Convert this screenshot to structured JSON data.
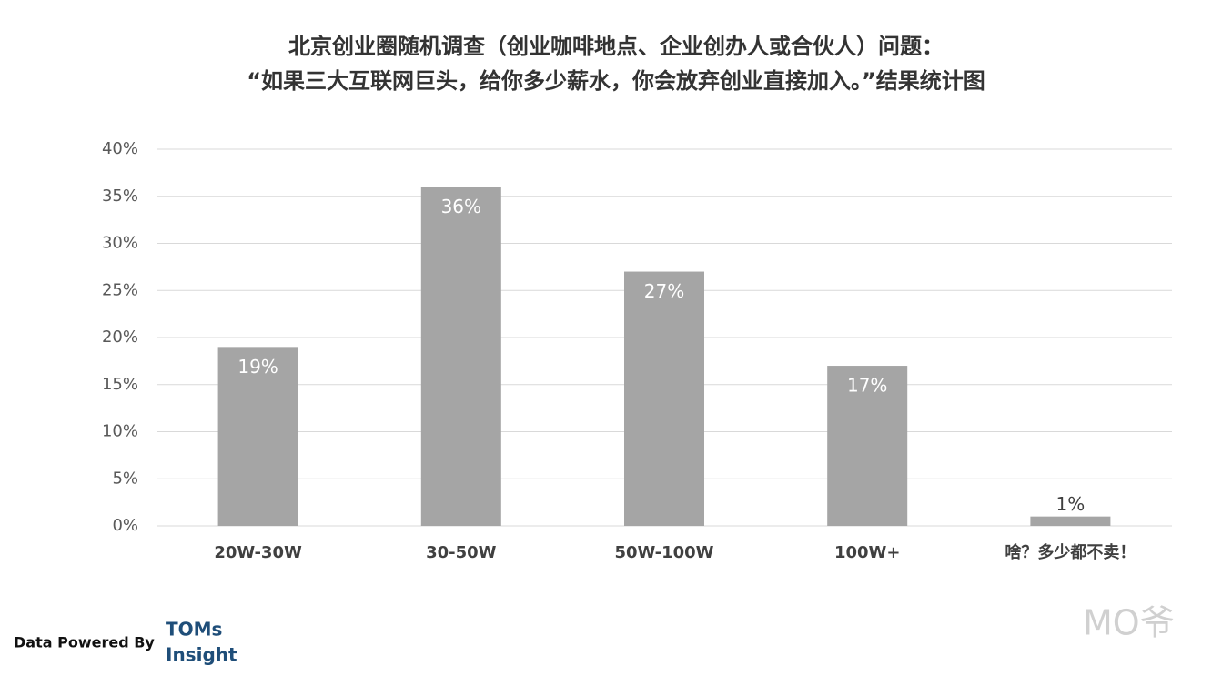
{
  "chart_data": {
    "type": "bar",
    "title": "北京创业圈随机调查（创业咖啡地点、企业创办人或合伙人）问题：",
    "subtitle": "“如果三大互联网巨头，给你多少薪水，你会放弃创业直接加入。”结果统计图",
    "categories": [
      "20W-30W",
      "30-50W",
      "50W-100W",
      "100W+",
      "啥？多少都不卖！"
    ],
    "values": [
      19,
      36,
      27,
      17,
      1
    ],
    "value_labels": [
      "19%",
      "36%",
      "27%",
      "17%",
      "1%"
    ],
    "color": "#a5a5a5",
    "ylim": [
      0,
      40
    ],
    "yticks": [
      {
        "value": 0,
        "label": "0%"
      },
      {
        "value": 5,
        "label": "5%"
      },
      {
        "value": 10,
        "label": "10%"
      },
      {
        "value": 15,
        "label": "15%"
      },
      {
        "value": 20,
        "label": "20%"
      },
      {
        "value": 25,
        "label": "25%"
      },
      {
        "value": 30,
        "label": "30%"
      },
      {
        "value": 35,
        "label": "35%"
      },
      {
        "value": 40,
        "label": "40%"
      }
    ],
    "grid": true
  },
  "footer": {
    "credit": "Data Powered By",
    "logo_top": "TOMs",
    "logo_bottom": "Insight",
    "watermark": "MO爷"
  }
}
